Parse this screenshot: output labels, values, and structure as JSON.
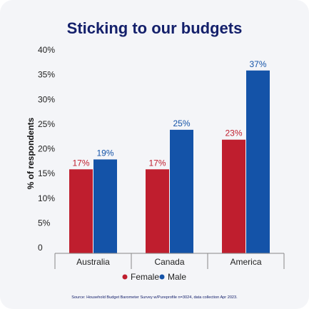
{
  "chart_data": {
    "type": "bar",
    "title": "Sticking to our budgets",
    "ylabel": "% of respondents",
    "xlabel": "",
    "categories": [
      "Australia",
      "Canada",
      "America"
    ],
    "series": [
      {
        "name": "Female",
        "values": [
          17,
          17,
          23
        ],
        "labels": [
          "17%",
          "17%",
          "23%"
        ],
        "color": "#bf1e2e"
      },
      {
        "name": "Male",
        "values": [
          19,
          25,
          37
        ],
        "labels": [
          "19%",
          "25%",
          "37%"
        ],
        "color": "#1453a8"
      }
    ],
    "ylim": [
      0,
      40
    ],
    "yticks": [
      0,
      5,
      10,
      15,
      20,
      25,
      30,
      35,
      40
    ],
    "ytick_labels": [
      "0",
      "5%",
      "10%",
      "15%",
      "20%",
      "25%",
      "30%",
      "35%",
      "40%"
    ],
    "grid": false,
    "legend_position": "bottom-center",
    "source": "Source: Household Budget Barometer Survey w/Pureprofile n=3024, data collection Apr 2023."
  },
  "colors": {
    "title": "#14206b",
    "female": "#bf1e2e",
    "male": "#1453a8",
    "background": "#f4f5f8",
    "axis": "#888888"
  }
}
